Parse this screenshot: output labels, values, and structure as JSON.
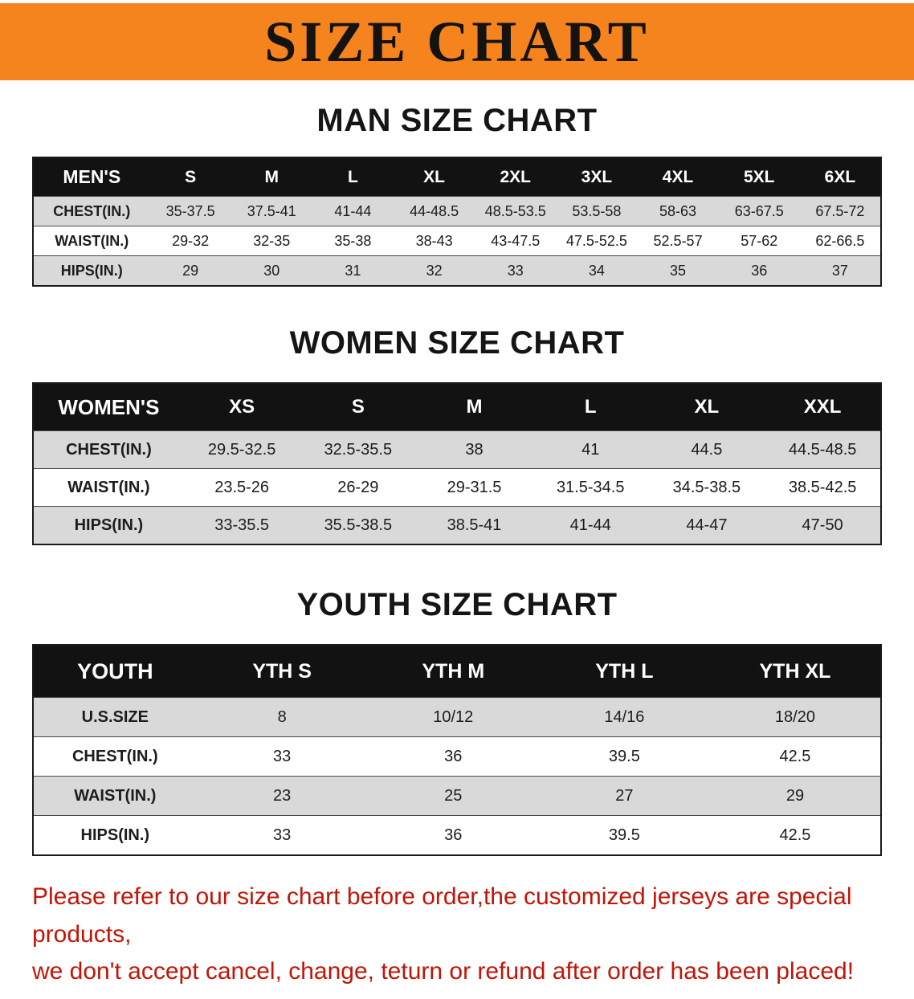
{
  "banner": {
    "title": "SIZE CHART"
  },
  "sections": [
    {
      "heading": "MAN SIZE CHART",
      "table": {
        "title": "MEN'S",
        "sizes": [
          "S",
          "M",
          "L",
          "XL",
          "2XL",
          "3XL",
          "4XL",
          "5XL",
          "6XL"
        ],
        "rows": [
          {
            "label": "CHEST(IN.)",
            "values": [
              "35-37.5",
              "37.5-41",
              "41-44",
              "44-48.5",
              "48.5-53.5",
              "53.5-58",
              "58-63",
              "63-67.5",
              "67.5-72"
            ]
          },
          {
            "label": "WAIST(IN.)",
            "values": [
              "29-32",
              "32-35",
              "35-38",
              "38-43",
              "43-47.5",
              "47.5-52.5",
              "52.5-57",
              "57-62",
              "62-66.5"
            ]
          },
          {
            "label": "HIPS(IN.)",
            "values": [
              "29",
              "30",
              "31",
              "32",
              "33",
              "34",
              "35",
              "36",
              "37"
            ]
          }
        ]
      }
    },
    {
      "heading": "WOMEN SIZE CHART",
      "table": {
        "title": "WOMEN'S",
        "sizes": [
          "XS",
          "S",
          "M",
          "L",
          "XL",
          "XXL"
        ],
        "rows": [
          {
            "label": "CHEST(IN.)",
            "values": [
              "29.5-32.5",
              "32.5-35.5",
              "38",
              "41",
              "44.5",
              "44.5-48.5"
            ]
          },
          {
            "label": "WAIST(IN.)",
            "values": [
              "23.5-26",
              "26-29",
              "29-31.5",
              "31.5-34.5",
              "34.5-38.5",
              "38.5-42.5"
            ]
          },
          {
            "label": "HIPS(IN.)",
            "values": [
              "33-35.5",
              "35.5-38.5",
              "38.5-41",
              "41-44",
              "44-47",
              "47-50"
            ]
          }
        ]
      }
    },
    {
      "heading": "YOUTH SIZE CHART",
      "table": {
        "title": "YOUTH",
        "sizes": [
          "YTH S",
          "YTH M",
          "YTH L",
          "YTH XL"
        ],
        "rows": [
          {
            "label": "U.S.SIZE",
            "values": [
              "8",
              "10/12",
              "14/16",
              "18/20"
            ]
          },
          {
            "label": "CHEST(IN.)",
            "values": [
              "33",
              "36",
              "39.5",
              "42.5"
            ]
          },
          {
            "label": "WAIST(IN.)",
            "values": [
              "23",
              "25",
              "27",
              "29"
            ]
          },
          {
            "label": "HIPS(IN.)",
            "values": [
              "33",
              "36",
              "39.5",
              "42.5"
            ]
          }
        ]
      }
    }
  ],
  "disclaimer": {
    "line1": "Please refer to our size chart before order,the customized jerseys are special products,",
    "line2": "we don't accept cancel, change, teturn or refund after order has been placed!"
  },
  "colors": {
    "banner_orange": "#f5831e",
    "header_black": "#121212",
    "row_gray": "#d9d9d9",
    "row_white": "#ffffff",
    "disclaimer_red": "#c11507"
  }
}
